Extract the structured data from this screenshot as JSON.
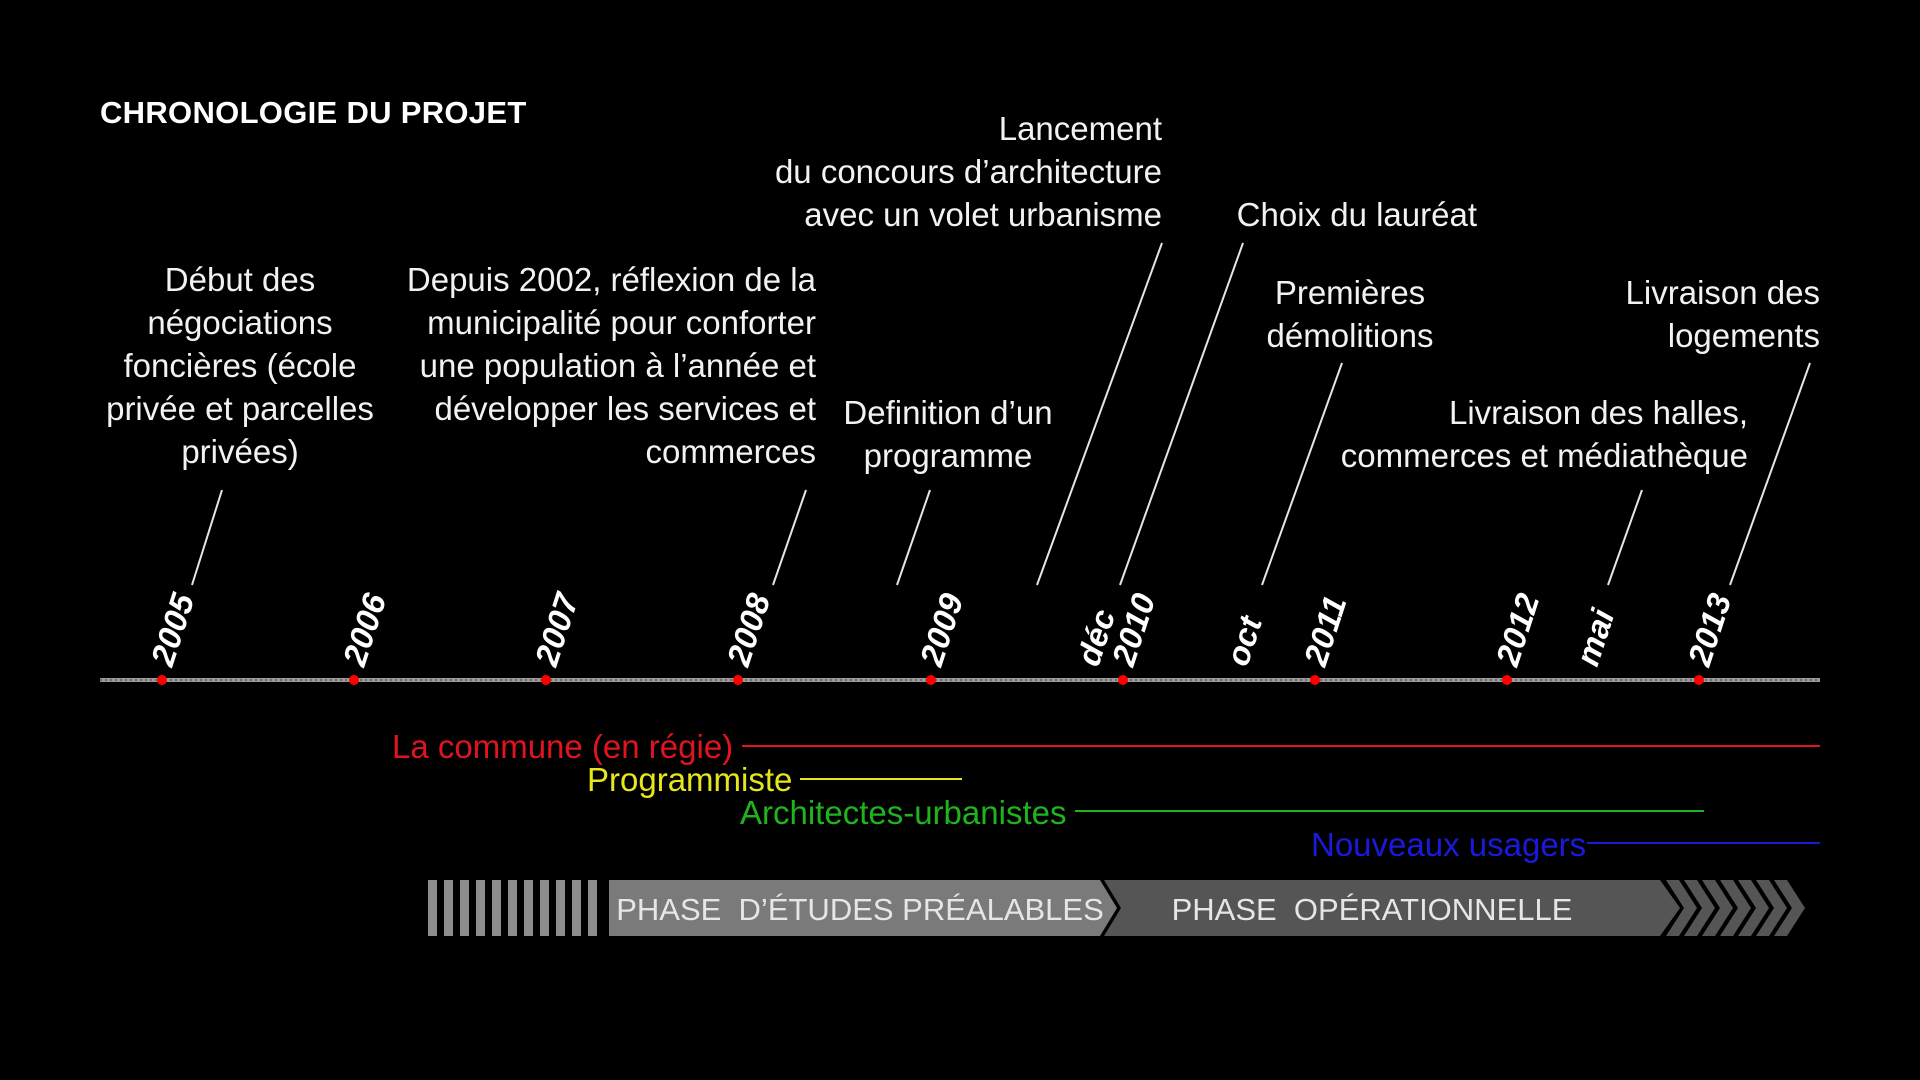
{
  "title": "CHRONOLOGIE DU PROJET",
  "events": [
    {
      "id": "e2005",
      "lines": [
        "Début des",
        "négociations",
        "foncières (école",
        "privée et parcelles",
        "privées)"
      ]
    },
    {
      "id": "e2008",
      "lines": [
        "Depuis 2002, réflexion de la",
        "municipalité pour conforter",
        "une population à l’année et",
        "développer les services et",
        "commerces"
      ]
    },
    {
      "id": "e2009",
      "lines": [
        "Definition d’un",
        "programme"
      ]
    },
    {
      "id": "elancement",
      "lines": [
        "Lancement",
        "du concours d’architecture",
        "avec un volet urbanisme"
      ]
    },
    {
      "id": "echoix",
      "lines": [
        "Choix du lauréat"
      ]
    },
    {
      "id": "edemol",
      "lines": [
        "Premières",
        "démolitions"
      ]
    },
    {
      "id": "ehalles",
      "lines": [
        "Livraison des halles,",
        "commerces et médiathèque"
      ]
    },
    {
      "id": "elogements",
      "lines": [
        "Livraison des",
        "logements"
      ]
    }
  ],
  "timeline_labels": [
    "2005",
    "2006",
    "2007",
    "2008",
    "2009",
    "déc",
    "2010",
    "oct",
    "2011",
    "2012",
    "mai",
    "2013"
  ],
  "roles": [
    {
      "label": "La commune (en régie)",
      "color": "#e0141e"
    },
    {
      "label": "Programmiste",
      "color": "#e6e61e"
    },
    {
      "label": "Architectes-urbanistes",
      "color": "#1fb41f"
    },
    {
      "label": "Nouveaux usagers",
      "color": "#1a1adc"
    }
  ],
  "phases": [
    "PHASE  D’ÉTUDES PRÉALABLES",
    "PHASE  OPÉRATIONNELLE"
  ],
  "colors": {
    "marker": "#ff0000",
    "axis": "#9a9a9a"
  }
}
